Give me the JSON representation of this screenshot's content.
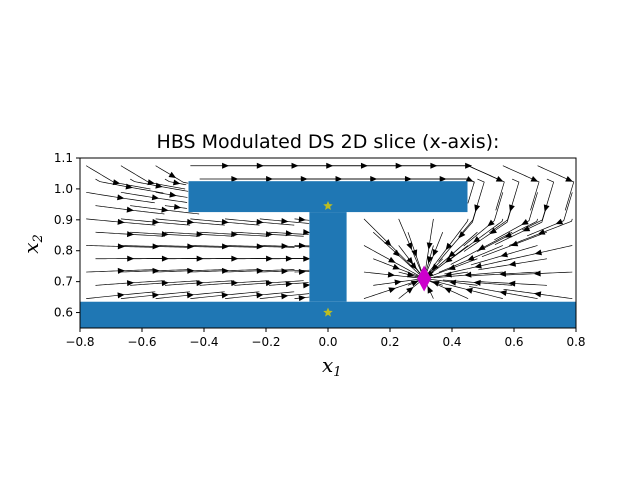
{
  "chart_data": {
    "type": "streamplot",
    "title": "HBS Modulated DS 2D slice (x-axis):",
    "xlabel": {
      "base": "x",
      "sub": "1"
    },
    "ylabel": {
      "base": "x",
      "sub": "2"
    },
    "xlim": [
      -0.8,
      0.8
    ],
    "ylim": [
      0.55,
      1.1
    ],
    "xticks": [
      "−0.8",
      "−0.6",
      "−0.4",
      "−0.2",
      "0.0",
      "0.2",
      "0.4",
      "0.6",
      "0.8"
    ],
    "yticks": [
      "0.6",
      "0.7",
      "0.8",
      "0.9",
      "1.0",
      "1.1"
    ],
    "obstacles": [
      {
        "name": "bottom-bar",
        "x": [
          -0.8,
          0.8
        ],
        "y": [
          0.55,
          0.635
        ]
      },
      {
        "name": "vertical-stem",
        "x": [
          -0.06,
          0.06
        ],
        "y": [
          0.635,
          0.925
        ]
      },
      {
        "name": "top-bar",
        "x": [
          -0.45,
          0.45
        ],
        "y": [
          0.925,
          1.025
        ]
      }
    ],
    "attractor": {
      "x": 0.31,
      "y": 0.71,
      "marker": "diamond"
    },
    "star_markers": [
      {
        "x": 0.0,
        "y": 0.945
      },
      {
        "x": 0.0,
        "y": 0.6
      }
    ],
    "colors": {
      "obstacle": "#1f77b4",
      "stream": "#000000",
      "attractor": "#cc00cc",
      "star": "#bcbd22"
    }
  }
}
